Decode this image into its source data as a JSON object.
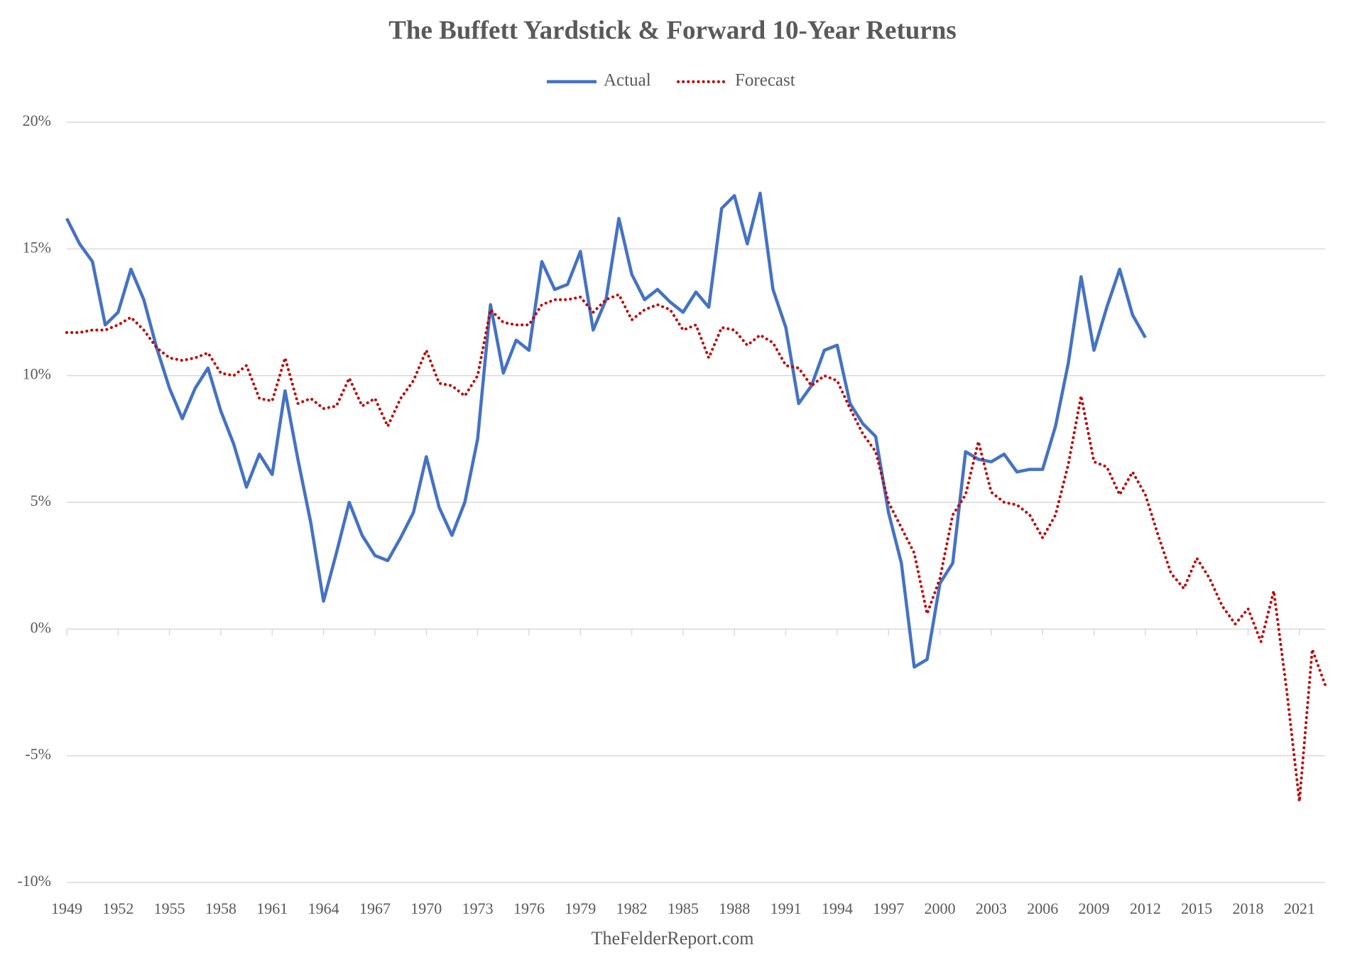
{
  "chart_data": {
    "type": "line",
    "title": "The Buffett Yardstick & Forward 10-Year Returns",
    "source": "TheFelderReport.com",
    "categories": [
      "1949",
      null,
      null,
      null,
      "1952",
      null,
      null,
      null,
      "1955",
      null,
      null,
      null,
      "1958",
      null,
      null,
      null,
      "1961",
      null,
      null,
      null,
      "1964",
      null,
      null,
      null,
      "1967",
      null,
      null,
      null,
      "1970",
      null,
      null,
      null,
      "1973",
      null,
      null,
      null,
      "1976",
      null,
      null,
      null,
      "1979",
      null,
      null,
      null,
      "1982",
      null,
      null,
      null,
      "1985",
      null,
      null,
      null,
      "1988",
      null,
      null,
      null,
      "1991",
      null,
      null,
      null,
      "1994",
      null,
      null,
      null,
      "1997",
      null,
      null,
      null,
      "2000",
      null,
      null,
      null,
      "2003",
      null,
      null,
      null,
      "2006",
      null,
      null,
      null,
      "2009",
      null,
      null,
      null,
      "2012",
      null,
      null,
      null,
      "2015",
      null,
      null,
      null,
      "2018",
      null,
      null,
      null,
      "2021",
      null,
      null
    ],
    "series": [
      {
        "name": "Actual",
        "color": "#4472c4",
        "style": "solid",
        "values": [
          16.2,
          15.2,
          14.5,
          12.0,
          12.5,
          14.2,
          13.0,
          11.1,
          9.5,
          8.3,
          9.5,
          10.3,
          8.6,
          7.3,
          5.6,
          6.9,
          6.1,
          9.4,
          6.7,
          4.2,
          1.1,
          3.0,
          5.0,
          3.7,
          2.9,
          2.7,
          3.6,
          4.6,
          6.8,
          4.8,
          3.7,
          5.0,
          7.5,
          12.8,
          10.1,
          11.4,
          11.0,
          14.5,
          13.4,
          13.6,
          14.9,
          11.8,
          13.0,
          16.2,
          14.0,
          13.0,
          13.4,
          12.9,
          12.5,
          13.3,
          12.7,
          16.6,
          17.1,
          15.2,
          17.2,
          13.4,
          11.9,
          8.9,
          9.6,
          11.0,
          11.2,
          8.9,
          8.1,
          7.6,
          4.6,
          2.6,
          -1.5,
          -1.2,
          1.8,
          2.6,
          7.0,
          6.7,
          6.6,
          6.9,
          6.2,
          6.3,
          6.3,
          8.0,
          10.5,
          13.9,
          11.0,
          12.7,
          14.2,
          12.4,
          11.5,
          null,
          null,
          null,
          null,
          null,
          null,
          null,
          null,
          null,
          null,
          null,
          null,
          null,
          null
        ]
      },
      {
        "name": "Forecast",
        "color": "#c00000",
        "style": "dotted",
        "values": [
          11.7,
          11.7,
          11.8,
          11.8,
          12.0,
          12.3,
          11.8,
          11.1,
          10.7,
          10.6,
          10.7,
          10.9,
          10.1,
          10.0,
          10.4,
          9.1,
          9.0,
          10.7,
          8.9,
          9.1,
          8.7,
          8.8,
          9.9,
          8.8,
          9.1,
          8.0,
          9.1,
          9.8,
          11.0,
          9.7,
          9.6,
          9.2,
          10.0,
          12.6,
          12.1,
          12.0,
          12.0,
          12.8,
          13.0,
          13.0,
          13.1,
          12.5,
          13.0,
          13.2,
          12.2,
          12.6,
          12.8,
          12.6,
          11.8,
          12.0,
          10.7,
          11.9,
          11.8,
          11.2,
          11.6,
          11.3,
          10.4,
          10.3,
          9.6,
          10.0,
          9.8,
          8.7,
          7.7,
          7.0,
          5.0,
          4.0,
          3.0,
          0.6,
          2.0,
          4.5,
          5.3,
          7.4,
          5.4,
          5.0,
          4.9,
          4.5,
          3.6,
          4.5,
          6.5,
          9.2,
          6.6,
          6.4,
          5.3,
          6.2,
          5.3,
          3.7,
          2.2,
          1.6,
          2.8,
          2.0,
          0.9,
          0.2,
          0.8,
          -0.5,
          1.5,
          -2.4,
          -6.8,
          -0.8,
          -2.2
        ]
      }
    ],
    "ylim": [
      -10,
      20
    ],
    "yticks": [
      {
        "value": -10,
        "label": "-10%"
      },
      {
        "value": -5,
        "label": "-5%"
      },
      {
        "value": 0,
        "label": "0%"
      },
      {
        "value": 5,
        "label": "5%"
      },
      {
        "value": 10,
        "label": "10%"
      },
      {
        "value": 15,
        "label": "15%"
      },
      {
        "value": 20,
        "label": "20%"
      }
    ],
    "grid": true,
    "legend": "top"
  }
}
